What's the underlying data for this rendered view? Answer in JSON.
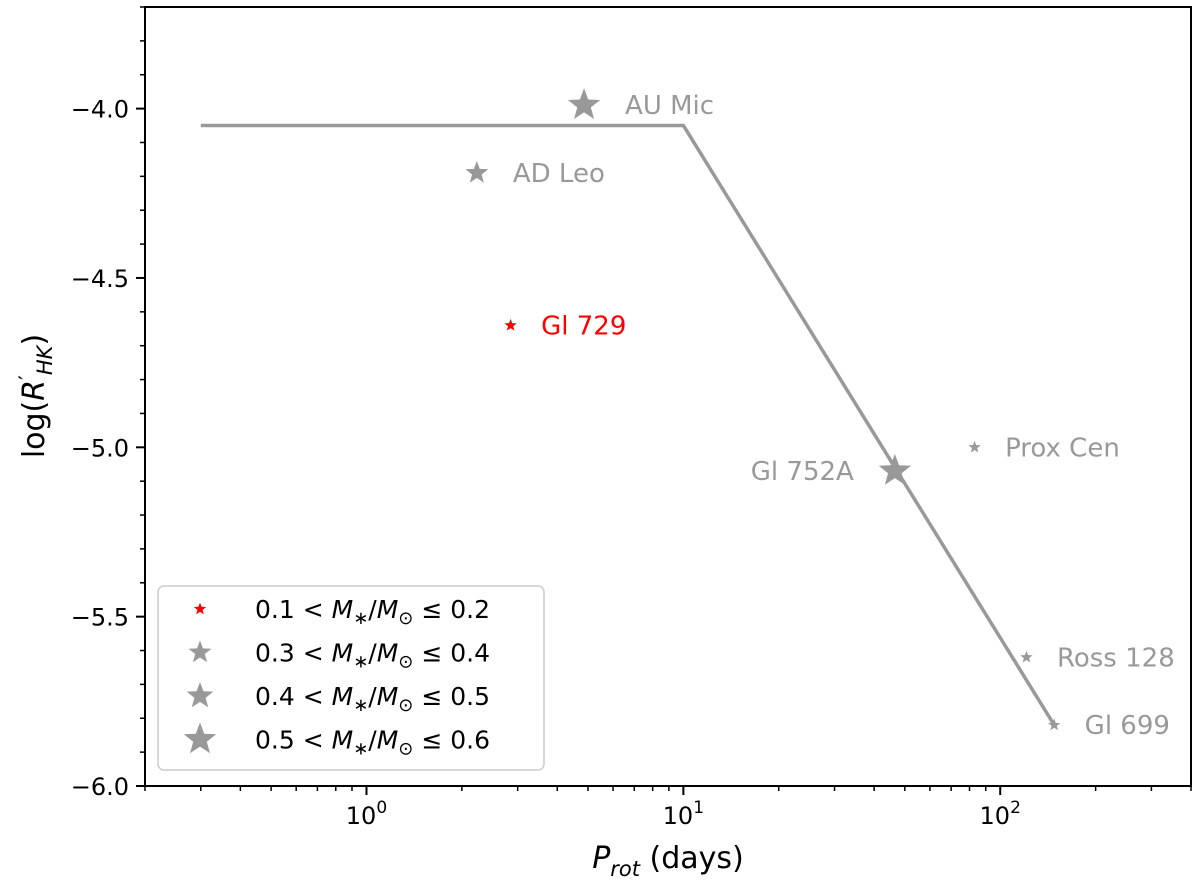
{
  "chart_data": {
    "type": "scatter",
    "xlabel": {
      "main": "P",
      "sub": "rot",
      "rest": " (days)"
    },
    "ylabel": {
      "prefix": "log(",
      "main": "R",
      "prime": "′",
      "sub": "HK",
      "suffix": ")"
    },
    "xscale": "log",
    "xlim": [
      0.2,
      400
    ],
    "ylim": [
      -6.0,
      -3.7
    ],
    "x_ticks": [
      {
        "value": 1,
        "base": "10",
        "exp": "0"
      },
      {
        "value": 10,
        "base": "10",
        "exp": "1"
      },
      {
        "value": 100,
        "base": "10",
        "exp": "2"
      }
    ],
    "y_ticks": [
      {
        "value": -4.0,
        "label": "−4.0"
      },
      {
        "value": -4.5,
        "label": "−4.5"
      },
      {
        "value": -5.0,
        "label": "−5.0"
      },
      {
        "value": -5.5,
        "label": "−5.5"
      },
      {
        "value": -6.0,
        "label": "−6.0"
      }
    ],
    "grid": false,
    "relation_line": [
      {
        "x": 0.3,
        "y": -4.05
      },
      {
        "x": 10.0,
        "y": -4.05
      },
      {
        "x": 148,
        "y": -5.82
      }
    ],
    "points": [
      {
        "name": "AU Mic",
        "x": 4.86,
        "y": -3.99,
        "mass_bin": 3,
        "color": "#999999",
        "label_side": "right"
      },
      {
        "name": "AD Leo",
        "x": 2.23,
        "y": -4.19,
        "mass_bin": 1,
        "color": "#999999",
        "label_side": "right"
      },
      {
        "name": "Gl 729",
        "x": 2.85,
        "y": -4.64,
        "mass_bin": 0,
        "color": "#ff0000",
        "label_side": "right"
      },
      {
        "name": "Gl 752A",
        "x": 46.5,
        "y": -5.07,
        "mass_bin": 3,
        "color": "#999999",
        "label_side": "left"
      },
      {
        "name": "Prox Cen",
        "x": 83,
        "y": -5.0,
        "mass_bin": 0,
        "color": "#999999",
        "label_side": "right"
      },
      {
        "name": "Ross 128",
        "x": 121,
        "y": -5.62,
        "mass_bin": 0,
        "color": "#999999",
        "label_side": "right"
      },
      {
        "name": "Gl 699",
        "x": 148,
        "y": -5.82,
        "mass_bin": 0,
        "color": "#999999",
        "label_side": "right"
      }
    ],
    "legend": {
      "placement": "lower-left",
      "entries": [
        {
          "lower": "0.1",
          "upper": "0.2",
          "color": "#ff0000",
          "mass_bin": 0
        },
        {
          "lower": "0.3",
          "upper": "0.4",
          "color": "#999999",
          "mass_bin": 1
        },
        {
          "lower": "0.4",
          "upper": "0.5",
          "color": "#999999",
          "mass_bin": 2
        },
        {
          "lower": "0.5",
          "upper": "0.6",
          "color": "#999999",
          "mass_bin": 3
        }
      ],
      "text_lt": "<",
      "text_m": "M",
      "text_star": "∗",
      "text_slash": "/",
      "text_msun": "M",
      "text_sun": "⊙",
      "text_le": "≤"
    },
    "colors": {
      "line": "#999999",
      "highlight": "#ff0000"
    }
  }
}
